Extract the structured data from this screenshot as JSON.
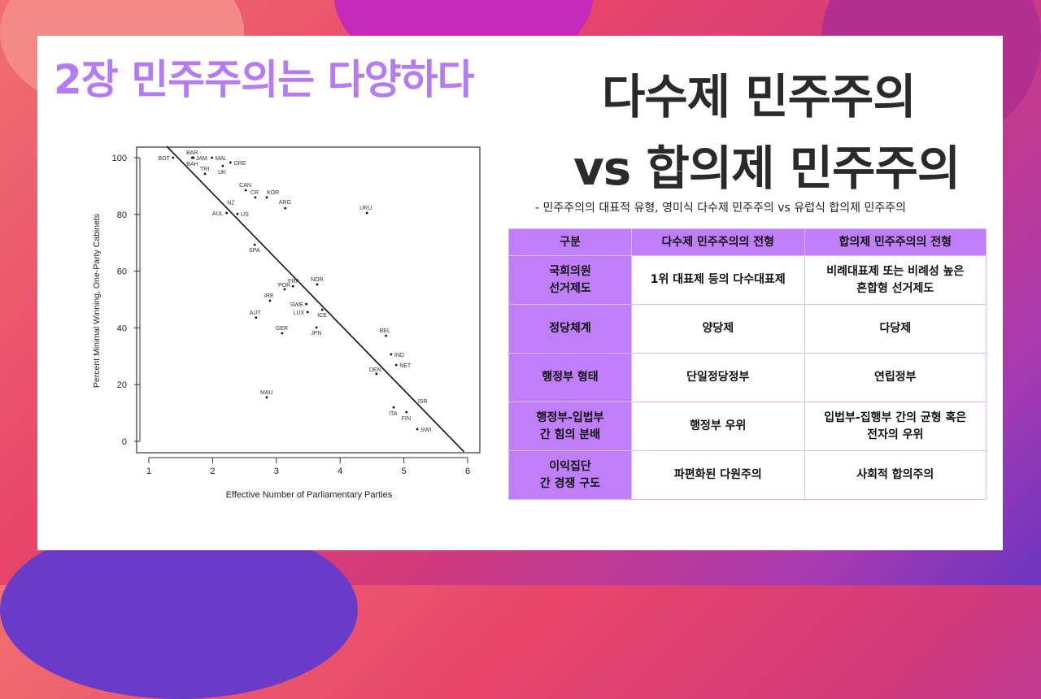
{
  "slide": {
    "chapter_title": "2장 민주주의는 다양하다",
    "main_title_line1": "다수제 민주주의",
    "main_title_line2": "vs 합의제 민주주의",
    "subtitle": "- 민주주의의 대표적 유형, 영미식 다수제 민주주의 vs 유럽식 합의제 민주주의"
  },
  "colors": {
    "accent": "#b57bf2",
    "table_header": "#c07ff9",
    "title": "#2a2a2a"
  },
  "table": {
    "headers": [
      "구분",
      "다수제 민주주의의 전형",
      "합의제 민주주의의 전형"
    ],
    "rows": [
      [
        "국회의원\n선거제도",
        "1위 대표제 등의 다수대표제",
        "비례대표제 또는 비례성 높은\n혼합형 선거제도"
      ],
      [
        "정당체계",
        "양당제",
        "다당제"
      ],
      [
        "행정부 형태",
        "단일정당정부",
        "연립정부"
      ],
      [
        "행정부-입법부\n간 힘의 분배",
        "행정부 우위",
        "입법부-집행부 간의 균형 혹은\n전자의 우위"
      ],
      [
        "이익집단\n간 경쟁 구도",
        "파편화된 다원주의",
        "사회적 합의주의"
      ]
    ]
  },
  "chart_data": {
    "type": "scatter",
    "xlabel": "Effective Number of Parliamentary Parties",
    "ylabel": "Percent Minimal Winning, One-Party Cabinets",
    "xlim": [
      1,
      6
    ],
    "ylim": [
      0,
      100
    ],
    "xticks": [
      "1",
      "2",
      "3",
      "4",
      "5",
      "6"
    ],
    "yticks": [
      "0",
      "20",
      "40",
      "60",
      "80",
      "100"
    ],
    "grid": false,
    "regression_line": {
      "intercept": 133.6,
      "slope": -23.1
    },
    "points": [
      {
        "label": "BOT",
        "x": 1.38,
        "y": 100
      },
      {
        "label": "BAR",
        "x": 1.69,
        "y": 100
      },
      {
        "label": "JAM",
        "x": 1.7,
        "y": 100
      },
      {
        "label": "BAH",
        "x": 1.68,
        "y": 100
      },
      {
        "label": "MAL",
        "x": 1.99,
        "y": 100
      },
      {
        "label": "GRE",
        "x": 2.28,
        "y": 98.3
      },
      {
        "label": "UK",
        "x": 2.16,
        "y": 97.1
      },
      {
        "label": "TRI",
        "x": 1.88,
        "y": 94.3
      },
      {
        "label": "CAN",
        "x": 2.52,
        "y": 88.5
      },
      {
        "label": "CR",
        "x": 2.67,
        "y": 86
      },
      {
        "label": "KOR",
        "x": 2.85,
        "y": 86
      },
      {
        "label": "ARG",
        "x": 3.14,
        "y": 82.2
      },
      {
        "label": "NZ",
        "x": 2.33,
        "y": 81
      },
      {
        "label": "AUL",
        "x": 2.22,
        "y": 80.5
      },
      {
        "label": "US",
        "x": 2.39,
        "y": 80.2
      },
      {
        "label": "URU",
        "x": 4.42,
        "y": 80.5
      },
      {
        "label": "SPA",
        "x": 2.66,
        "y": 69.3
      },
      {
        "label": "FRA",
        "x": 3.26,
        "y": 54.7
      },
      {
        "label": "NOR",
        "x": 3.64,
        "y": 55.3
      },
      {
        "label": "POR",
        "x": 3.13,
        "y": 53.6
      },
      {
        "label": "IRE",
        "x": 2.9,
        "y": 49.6
      },
      {
        "label": "SWE",
        "x": 3.47,
        "y": 48.4
      },
      {
        "label": "LUX",
        "x": 3.49,
        "y": 45.6
      },
      {
        "label": "ICE",
        "x": 3.72,
        "y": 46.4
      },
      {
        "label": "AUT",
        "x": 2.68,
        "y": 43.6
      },
      {
        "label": "GER",
        "x": 3.09,
        "y": 38.1
      },
      {
        "label": "JPN",
        "x": 3.63,
        "y": 40.1
      },
      {
        "label": "BEL",
        "x": 4.72,
        "y": 37.2
      },
      {
        "label": "IND",
        "x": 4.8,
        "y": 30.7
      },
      {
        "label": "NET",
        "x": 4.88,
        "y": 26.9
      },
      {
        "label": "DEN",
        "x": 4.57,
        "y": 23.8
      },
      {
        "label": "MAU",
        "x": 2.85,
        "y": 15.5
      },
      {
        "label": "ISR",
        "x": 5.22,
        "y": 14.3
      },
      {
        "label": "ITA",
        "x": 4.84,
        "y": 12
      },
      {
        "label": "FIN",
        "x": 5.04,
        "y": 10.3
      },
      {
        "label": "SWI",
        "x": 5.21,
        "y": 4.3
      }
    ]
  }
}
